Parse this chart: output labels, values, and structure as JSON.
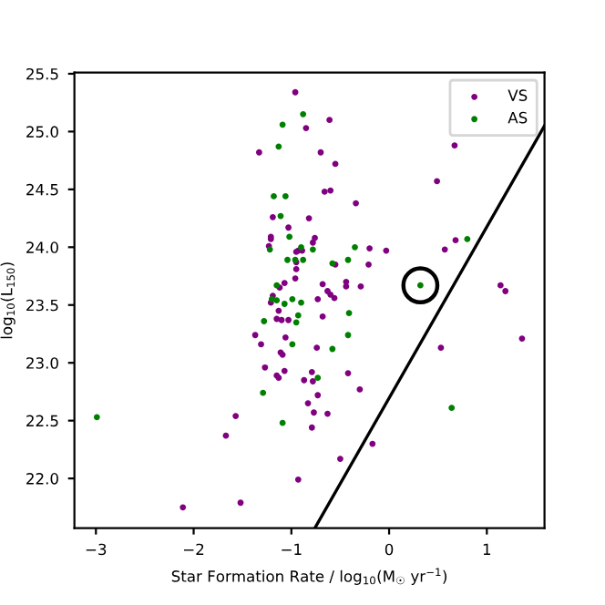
{
  "chart_data": {
    "type": "scatter",
    "xlabel": "Star Formation Rate / log$_{10}$(M$_{☉}$ yr$^{−1}$)",
    "ylabel": "log$_{10}$(L$_{150}$)",
    "xlim": [
      -3.22,
      1.59
    ],
    "ylim": [
      21.57,
      25.51
    ],
    "xticks": [
      {
        "value": -3,
        "label": "−3"
      },
      {
        "value": -2,
        "label": "−2"
      },
      {
        "value": -1,
        "label": "−1"
      },
      0,
      1
    ],
    "yticks": [
      {
        "value": 22,
        "label": "22.0"
      },
      22.5,
      {
        "value": 23,
        "label": "23.0"
      },
      23.5,
      {
        "value": 24,
        "label": "24.0"
      },
      24.5,
      {
        "value": 25,
        "label": "25.0"
      },
      25.5
    ],
    "grid": false,
    "legend": "top right",
    "marker": "circle",
    "series": [
      {
        "name": "VS",
        "color": "#800080",
        "x": [
          -0.96,
          -1.33,
          -0.85,
          -1.19,
          -1.03,
          -1.21,
          -1.21,
          -1.23,
          -0.82,
          -0.95,
          -0.93,
          -0.95,
          -0.95,
          -0.96,
          -1.07,
          -1.12,
          -1.19,
          -1.21,
          -1.13,
          -1.15,
          -1.1,
          -1.03,
          -0.61,
          -0.7,
          -0.55,
          0.67,
          0.49,
          -0.66,
          -0.6,
          -0.34,
          -0.76,
          -0.78,
          -0.89,
          -0.2,
          -0.03,
          0.57,
          0.68,
          -0.55,
          -0.21,
          -0.68,
          -0.44,
          -0.44,
          -0.29,
          -0.63,
          -0.6,
          -0.56,
          -0.73,
          1.14,
          1.19,
          -0.68,
          -1.37,
          -1.31,
          -1.06,
          -1.11,
          -1.09,
          -1.27,
          -1.07,
          -1.15,
          -1.13,
          -0.87,
          -0.83,
          -1.57,
          -1.67,
          -0.93,
          -2.11,
          -1.52,
          -0.74,
          -0.79,
          -0.78,
          -0.73,
          -0.77,
          -0.63,
          -0.79,
          -0.42,
          -0.3,
          -0.17,
          -0.5,
          0.53,
          1.36
        ],
        "values": [
          25.34,
          24.82,
          25.03,
          24.26,
          24.17,
          24.09,
          24.07,
          24.01,
          24.25,
          23.96,
          23.97,
          23.87,
          23.81,
          23.73,
          23.69,
          23.65,
          23.58,
          23.52,
          23.45,
          23.38,
          23.37,
          23.37,
          25.1,
          24.82,
          24.72,
          24.88,
          24.57,
          24.48,
          24.49,
          24.38,
          24.08,
          24.04,
          23.97,
          23.99,
          23.97,
          23.98,
          24.06,
          23.85,
          23.85,
          23.68,
          23.7,
          23.66,
          23.66,
          23.62,
          23.59,
          23.56,
          23.55,
          23.67,
          23.62,
          23.4,
          23.24,
          23.16,
          23.22,
          23.09,
          23.07,
          22.96,
          22.93,
          22.89,
          22.87,
          22.85,
          22.65,
          22.54,
          22.37,
          21.99,
          21.75,
          21.79,
          23.13,
          22.92,
          22.84,
          22.72,
          22.57,
          22.56,
          22.44,
          22.91,
          22.77,
          22.3,
          22.17,
          23.13,
          23.21
        ]
      },
      {
        "name": "AS",
        "color": "#008000",
        "x": [
          -1.09,
          -1.13,
          -1.18,
          -1.06,
          -1.11,
          -1.02,
          -1.22,
          -0.9,
          -1.04,
          -0.96,
          -0.88,
          -1.15,
          -1.2,
          -1.15,
          -0.99,
          -0.9,
          -1.07,
          -1.28,
          -0.95,
          -0.88,
          -0.78,
          -0.35,
          -0.58,
          -0.42,
          0.32,
          0.8,
          -0.41,
          -0.93,
          -2.99,
          -1.29,
          -1.09,
          -0.99,
          -0.42,
          -0.58,
          -0.73,
          0.64
        ],
        "values": [
          25.06,
          24.87,
          24.44,
          24.44,
          24.27,
          24.09,
          23.98,
          24.0,
          23.89,
          23.89,
          23.89,
          23.67,
          23.55,
          23.54,
          23.55,
          23.52,
          23.51,
          23.36,
          23.35,
          25.15,
          23.98,
          24.0,
          23.86,
          23.89,
          23.67,
          24.07,
          23.43,
          23.41,
          22.53,
          22.74,
          22.48,
          23.16,
          23.24,
          23.12,
          22.87,
          22.61
        ]
      },
      {
        "type": "bubble",
        "color": "#000000",
        "x": [
          0.32
        ],
        "values": [
          23.67
        ],
        "sizes": [
          1
        ]
      },
      {
        "type": "line",
        "marker": "none",
        "color": "#000000",
        "x": [
          -0.76,
          1.59
        ],
        "values": [
          21.57,
          25.05
        ]
      }
    ]
  }
}
